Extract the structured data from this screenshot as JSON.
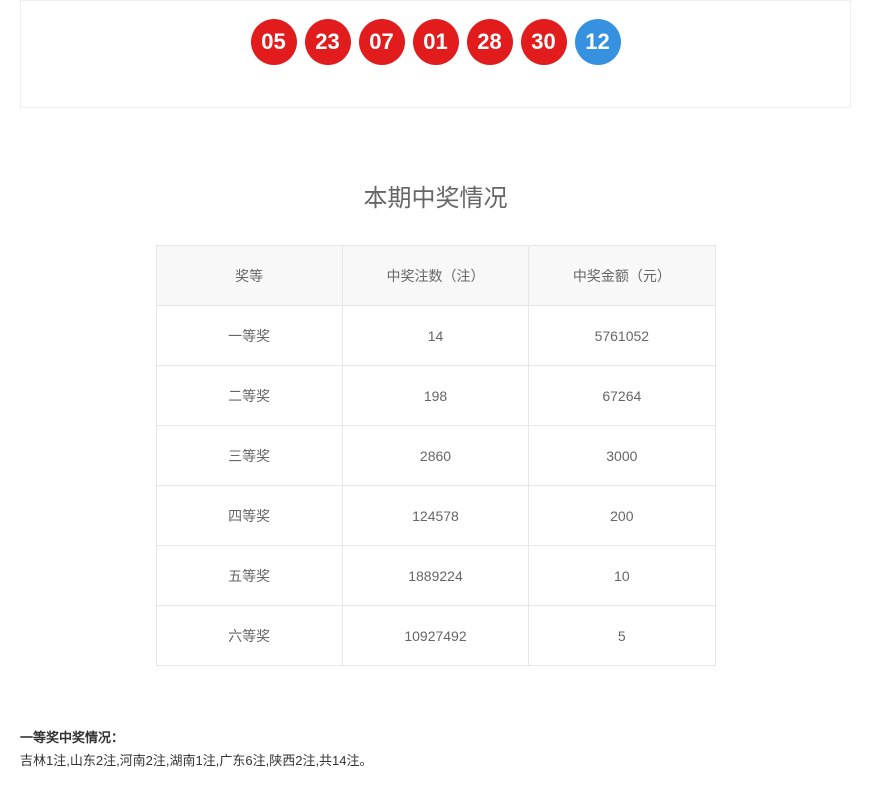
{
  "balls": {
    "items": [
      {
        "value": "05",
        "color": "#e21c1c"
      },
      {
        "value": "23",
        "color": "#e21c1c"
      },
      {
        "value": "07",
        "color": "#e21c1c"
      },
      {
        "value": "01",
        "color": "#e21c1c"
      },
      {
        "value": "28",
        "color": "#e21c1c"
      },
      {
        "value": "30",
        "color": "#e21c1c"
      },
      {
        "value": "12",
        "color": "#3691e0"
      }
    ]
  },
  "section_title": "本期中奖情况",
  "prize_table": {
    "headers": {
      "c0": "奖等",
      "c1": "中奖注数（注）",
      "c2": "中奖金额（元）"
    },
    "rows": [
      {
        "c0": "一等奖",
        "c1": "14",
        "c2": "5761052"
      },
      {
        "c0": "二等奖",
        "c1": "198",
        "c2": "67264"
      },
      {
        "c0": "三等奖",
        "c1": "2860",
        "c2": "3000"
      },
      {
        "c0": "四等奖",
        "c1": "124578",
        "c2": "200"
      },
      {
        "c0": "五等奖",
        "c1": "1889224",
        "c2": "10"
      },
      {
        "c0": "六等奖",
        "c1": "10927492",
        "c2": "5"
      }
    ]
  },
  "footer": {
    "label": "一等奖中奖情况：",
    "detail": "吉林1注,山东2注,河南2注,湖南1注,广东6注,陕西2注,共14注。"
  }
}
